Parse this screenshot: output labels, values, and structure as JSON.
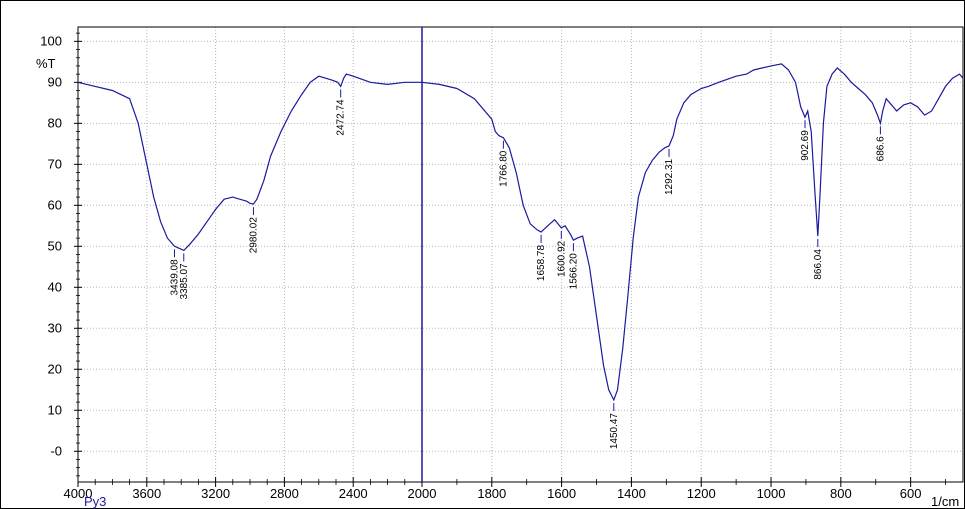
{
  "chart_data": {
    "type": "line",
    "title": "",
    "sample_label": "Py3",
    "xlabel": "1/cm",
    "ylabel": "%T",
    "xlim": [
      4000,
      450
    ],
    "ylim": [
      -7.5,
      103.5
    ],
    "x_ticks": [
      "4000",
      "3600",
      "3200",
      "2800",
      "2400",
      "2000",
      "1800",
      "1600",
      "1400",
      "1200",
      "1000",
      "800",
      "600"
    ],
    "y_ticks": [
      "100",
      "90",
      "80",
      "70",
      "60",
      "50",
      "40",
      "30",
      "20",
      "10",
      "-0"
    ],
    "grid": true,
    "line_color": "#1a1a9e",
    "series": [
      {
        "x": [
          4000,
          3900,
          3800,
          3700,
          3650,
          3600,
          3560,
          3520,
          3480,
          3439.08,
          3410,
          3385.07,
          3350,
          3300,
          3250,
          3200,
          3150,
          3100,
          3060,
          3020,
          3000,
          2980.02,
          2960,
          2920,
          2880,
          2820,
          2760,
          2700,
          2650,
          2600,
          2560,
          2520,
          2490,
          2472.74,
          2455,
          2440,
          2400,
          2300,
          2200,
          2100,
          2000,
          1950,
          1900,
          1850,
          1800,
          1790,
          1780,
          1766.8,
          1750,
          1730,
          1710,
          1690,
          1670,
          1658.78,
          1640,
          1620,
          1600.92,
          1590,
          1575,
          1566.2,
          1555,
          1540,
          1520,
          1500,
          1480,
          1465,
          1450.47,
          1440,
          1425,
          1410,
          1395,
          1380,
          1360,
          1340,
          1320,
          1305,
          1292.31,
          1280,
          1270,
          1250,
          1230,
          1200,
          1180,
          1150,
          1100,
          1070,
          1050,
          1000,
          970,
          950,
          930,
          915,
          902.69,
          895,
          885,
          875,
          866.04,
          860,
          850,
          840,
          825,
          810,
          790,
          770,
          750,
          730,
          710,
          695,
          686.6,
          680,
          670,
          660,
          640,
          620,
          600,
          580,
          560,
          540,
          520,
          500,
          480,
          460,
          450
        ],
        "y": [
          90,
          89,
          88,
          86,
          80,
          70,
          62,
          56,
          52,
          50,
          49.5,
          49,
          50.5,
          53,
          56,
          59,
          61.5,
          62,
          61.5,
          61,
          60.5,
          60.3,
          61.5,
          66,
          72,
          78,
          83,
          87,
          90,
          91.5,
          91,
          90.5,
          90,
          89,
          91,
          92,
          91.5,
          90,
          89.5,
          90,
          90,
          89.5,
          88.5,
          86,
          81,
          78,
          77,
          76.5,
          74,
          68,
          60,
          55.5,
          54,
          53.5,
          55,
          56.5,
          54.5,
          55,
          53,
          51.5,
          52,
          52.5,
          45,
          33,
          21,
          15,
          12.5,
          15,
          25,
          38,
          52,
          62,
          68,
          71,
          73,
          74,
          74.5,
          77,
          81,
          85,
          87,
          88.5,
          89,
          90,
          91.5,
          92,
          93,
          94,
          94.5,
          93,
          90,
          84,
          81.5,
          83,
          78,
          64,
          52.5,
          62,
          80,
          89,
          92,
          93.5,
          92,
          90,
          88.5,
          87,
          85,
          82,
          80,
          83,
          86,
          85,
          83,
          84.5,
          85,
          84,
          82,
          83,
          86,
          89,
          91,
          92,
          91
        ]
      }
    ],
    "peak_labels": [
      {
        "x": 3439.08,
        "y": 50,
        "text": "3439.08"
      },
      {
        "x": 3385.07,
        "y": 49,
        "text": "3385.07"
      },
      {
        "x": 2980.02,
        "y": 60.3,
        "text": "2980.02"
      },
      {
        "x": 2472.74,
        "y": 89,
        "text": "2472.74"
      },
      {
        "x": 1766.8,
        "y": 76.5,
        "text": "1766.80"
      },
      {
        "x": 1658.78,
        "y": 53.5,
        "text": "1658.78"
      },
      {
        "x": 1600.92,
        "y": 54.5,
        "text": "1600.92"
      },
      {
        "x": 1566.2,
        "y": 51.5,
        "text": "1566.20"
      },
      {
        "x": 1450.47,
        "y": 12.5,
        "text": "1450.47"
      },
      {
        "x": 1292.31,
        "y": 74.5,
        "text": "1292.31"
      },
      {
        "x": 902.69,
        "y": 81.5,
        "text": "902.69"
      },
      {
        "x": 866.04,
        "y": 52.5,
        "text": "866.04"
      },
      {
        "x": 686.6,
        "y": 80,
        "text": "686.6"
      }
    ],
    "cursor_x": 2000
  }
}
